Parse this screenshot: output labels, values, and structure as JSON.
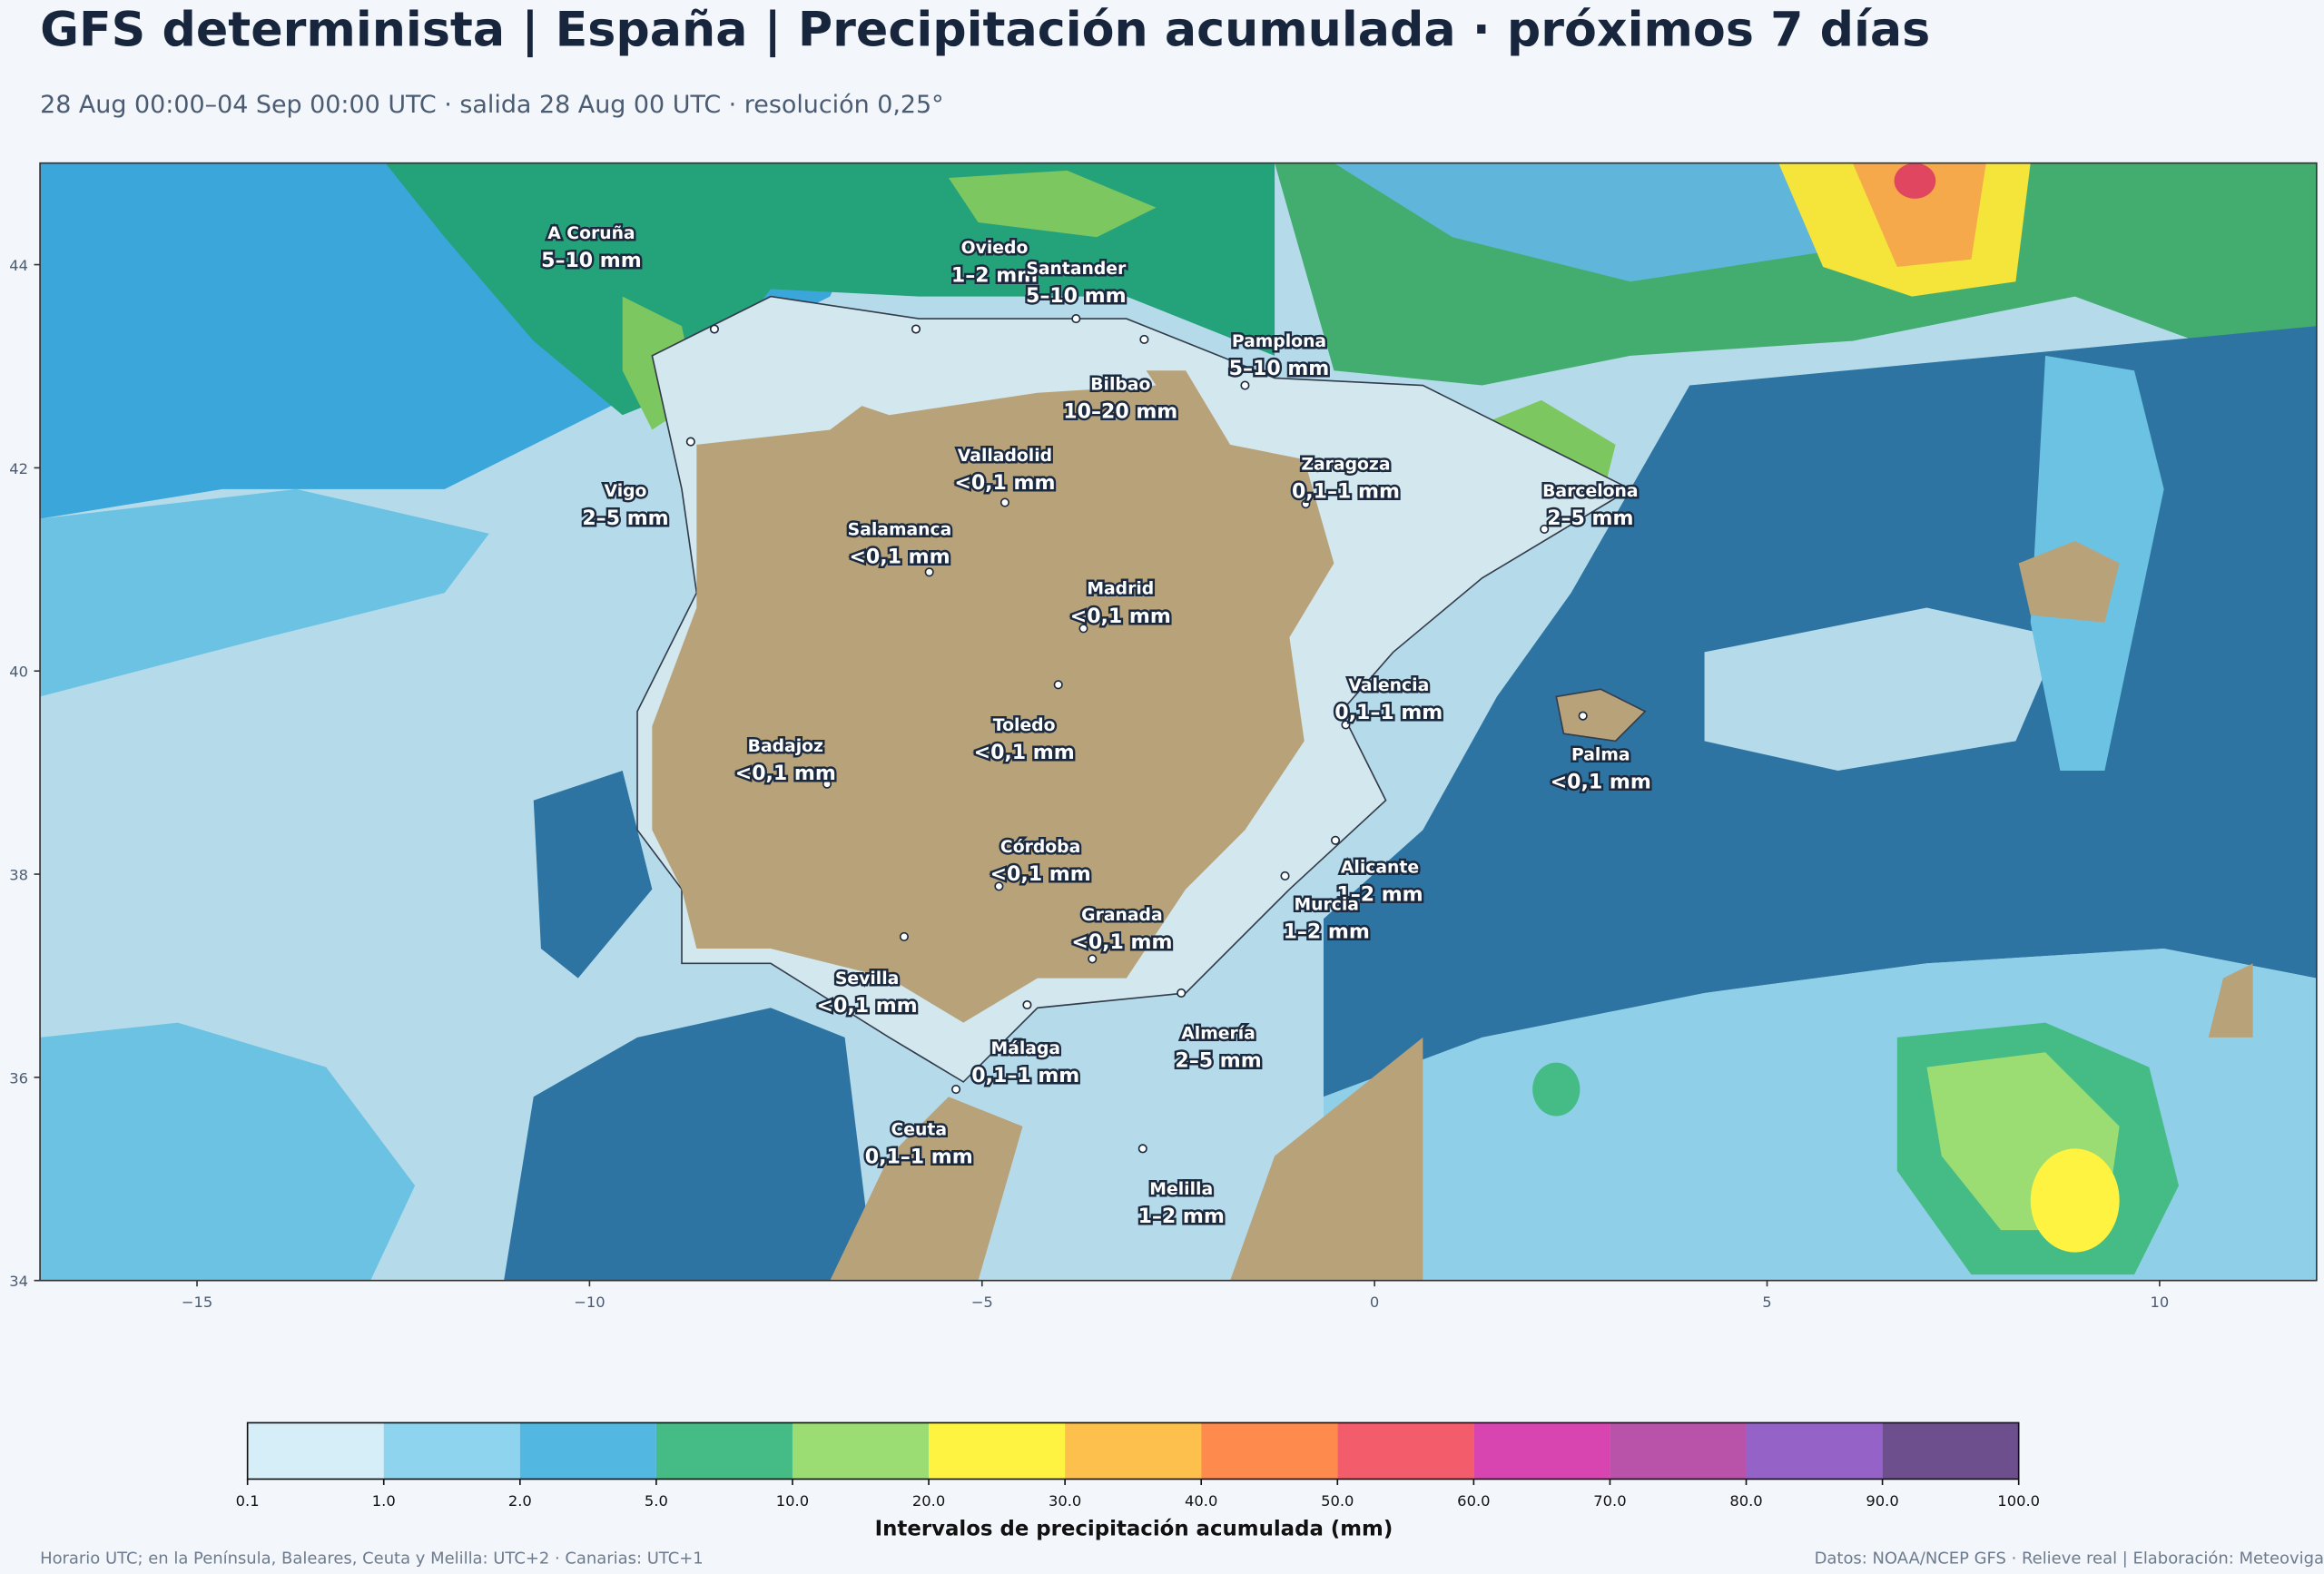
{
  "header": {
    "title": "GFS determinista | España | Precipitación acumulada · próximos 7 días",
    "subtitle": "28 Aug 00:00–04 Sep 00:00 UTC · salida 28 Aug 00 UTC · resolución 0,25°"
  },
  "map": {
    "xlim": [
      -17,
      12
    ],
    "ylim": [
      34,
      45
    ],
    "xticks": [
      {
        "value": -15,
        "label": "−15"
      },
      {
        "value": -10,
        "label": "−10"
      },
      {
        "value": -5,
        "label": "−5"
      },
      0,
      5,
      10
    ],
    "yticks": [
      34,
      36,
      38,
      40,
      42,
      44
    ]
  },
  "cities": [
    {
      "name": "A Coruña",
      "label": "5–10 mm"
    },
    {
      "name": "Oviedo",
      "label": "1–2 mm"
    },
    {
      "name": "Santander",
      "label": "5–10 mm"
    },
    {
      "name": "Pamplona",
      "label": "5–10 mm"
    },
    {
      "name": "Bilbao",
      "label": "10–20 mm"
    },
    {
      "name": "Valladolid",
      "label": "<0,1 mm"
    },
    {
      "name": "Zaragoza",
      "label": "0,1–1 mm"
    },
    {
      "name": "Barcelona",
      "label": "2–5 mm"
    },
    {
      "name": "Vigo",
      "label": "2–5 mm"
    },
    {
      "name": "Salamanca",
      "label": "<0,1 mm"
    },
    {
      "name": "Madrid",
      "label": "<0,1 mm"
    },
    {
      "name": "Valencia",
      "label": "0,1–1 mm"
    },
    {
      "name": "Toledo",
      "label": "<0,1 mm"
    },
    {
      "name": "Badajoz",
      "label": "<0,1 mm"
    },
    {
      "name": "Palma",
      "label": "<0,1 mm"
    },
    {
      "name": "Córdoba",
      "label": "<0,1 mm"
    },
    {
      "name": "Alicante",
      "label": "1–2 mm"
    },
    {
      "name": "Murcia",
      "label": "1–2 mm"
    },
    {
      "name": "Granada",
      "label": "<0,1 mm"
    },
    {
      "name": "Sevilla",
      "label": "<0,1 mm"
    },
    {
      "name": "Málaga",
      "label": "0,1–1 mm"
    },
    {
      "name": "Almería",
      "label": "2–5 mm"
    },
    {
      "name": "Ceuta",
      "label": "0,1–1 mm"
    },
    {
      "name": "Melilla",
      "label": "1–2 mm"
    }
  ],
  "colorbar": {
    "label": "Intervalos de precipitación acumulada (mm)",
    "levels": [
      "0.1",
      "1.0",
      "2.0",
      "5.0",
      "10.0",
      "20.0",
      "30.0",
      "40.0",
      "50.0",
      "60.0",
      "70.0",
      "80.0",
      "90.0",
      "100.0"
    ],
    "colors": [
      "#d6eef7",
      "#8ed4ee",
      "#52b8e2",
      "#45bb86",
      "#9bdc73",
      "#fef340",
      "#fec04c",
      "#fe8a4d",
      "#f25c6b",
      "#d945b0",
      "#b953a9",
      "#9563c8",
      "#6d4f8d"
    ]
  },
  "footer": {
    "left": "Horario UTC; en la Península, Baleares, Ceuta y Melilla: UTC+2 · Canarias: UTC+1",
    "right": "Datos: NOAA/NCEP GFS · Relieve real | Elaboración: Meteoviga"
  }
}
